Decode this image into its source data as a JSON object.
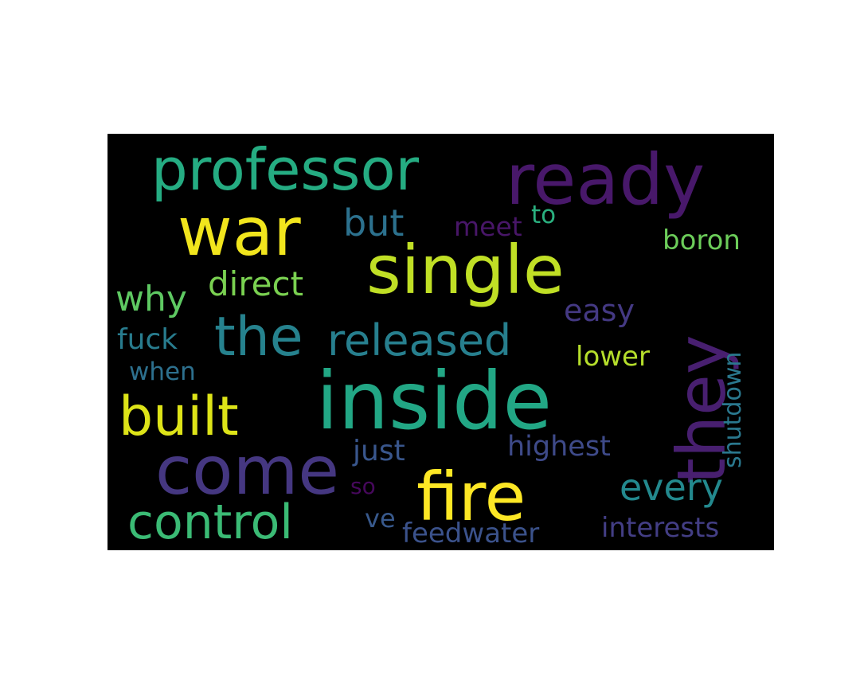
{
  "word_cloud": {
    "background": "#000000",
    "words": [
      {
        "text": "inside",
        "color": "#22a785"
      },
      {
        "text": "ready",
        "color": "#48186a"
      },
      {
        "text": "professor",
        "color": "#25ac82"
      },
      {
        "text": "single",
        "color": "#c0df25"
      },
      {
        "text": "war",
        "color": "#f1e51d"
      },
      {
        "text": "come",
        "color": "#453781"
      },
      {
        "text": "fire",
        "color": "#fde725"
      },
      {
        "text": "they",
        "color": "#481f70"
      },
      {
        "text": "built",
        "color": "#dde318"
      },
      {
        "text": "the",
        "color": "#26828e"
      },
      {
        "text": "released",
        "color": "#277f8e"
      },
      {
        "text": "control",
        "color": "#3bbb75"
      },
      {
        "text": "every",
        "color": "#23898e"
      },
      {
        "text": "but",
        "color": "#2c718e"
      },
      {
        "text": "why",
        "color": "#5ec962"
      },
      {
        "text": "direct",
        "color": "#7ad151"
      },
      {
        "text": "easy",
        "color": "#443983"
      },
      {
        "text": "highest",
        "color": "#3e4a89"
      },
      {
        "text": "just",
        "color": "#39568c"
      },
      {
        "text": "boron",
        "color": "#6ccd5a"
      },
      {
        "text": "fuck",
        "color": "#287c8e"
      },
      {
        "text": "lower",
        "color": "#b5de2b"
      },
      {
        "text": "interests",
        "color": "#433e85"
      },
      {
        "text": "feedwater",
        "color": "#3b528b"
      },
      {
        "text": "shutdown",
        "color": "#2a788e"
      },
      {
        "text": "when",
        "color": "#2d708e"
      },
      {
        "text": "meet",
        "color": "#481668"
      },
      {
        "text": "to",
        "color": "#2ab07f"
      },
      {
        "text": "ve",
        "color": "#38598c"
      },
      {
        "text": "so",
        "color": "#46085c"
      }
    ]
  }
}
